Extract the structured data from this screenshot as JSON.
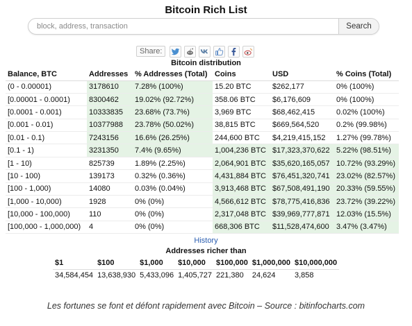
{
  "page": {
    "title": "Bitcoin Rich List"
  },
  "search": {
    "placeholder": "block, address, transaction",
    "button_label": "Search"
  },
  "share": {
    "label": "Share:",
    "icons": [
      "twitter-icon",
      "reddit-icon",
      "vk-icon",
      "like-icon",
      "facebook-icon",
      "weibo-icon"
    ]
  },
  "distribution": {
    "title": "Bitcoin distribution",
    "headers": [
      "Balance, BTC",
      "Addresses",
      "% Addresses (Total)",
      "Coins",
      "USD",
      "% Coins (Total)"
    ],
    "rows": [
      [
        "(0 - 0.00001)",
        "3178610",
        "7.28% (100%)",
        "15.20 BTC",
        "$262,177",
        "0% (100%)"
      ],
      [
        "[0.00001 - 0.0001)",
        "8300462",
        "19.02% (92.72%)",
        "358.06 BTC",
        "$6,176,609",
        "0% (100%)"
      ],
      [
        "[0.0001 - 0.001)",
        "10333835",
        "23.68% (73.7%)",
        "3,969 BTC",
        "$68,462,415",
        "0.02% (100%)"
      ],
      [
        "[0.001 - 0.01)",
        "10377988",
        "23.78% (50.02%)",
        "38,815 BTC",
        "$669,564,520",
        "0.2% (99.98%)"
      ],
      [
        "[0.01 - 0.1)",
        "7243156",
        "16.6% (26.25%)",
        "244,600 BTC",
        "$4,219,415,152",
        "1.27% (99.78%)"
      ],
      [
        "[0.1 - 1)",
        "3231350",
        "7.4% (9.65%)",
        "1,004,236 BTC",
        "$17,323,370,622",
        "5.22% (98.51%)"
      ],
      [
        "[1 - 10)",
        "825739",
        "1.89% (2.25%)",
        "2,064,901 BTC",
        "$35,620,165,057",
        "10.72% (93.29%)"
      ],
      [
        "[10 - 100)",
        "139173",
        "0.32% (0.36%)",
        "4,431,884 BTC",
        "$76,451,320,741",
        "23.02% (82.57%)"
      ],
      [
        "[100 - 1,000)",
        "14080",
        "0.03% (0.04%)",
        "3,913,468 BTC",
        "$67,508,491,190",
        "20.33% (59.55%)"
      ],
      [
        "[1,000 - 10,000)",
        "1928",
        "0% (0%)",
        "4,566,612 BTC",
        "$78,775,416,836",
        "23.72% (39.22%)"
      ],
      [
        "[10,000 - 100,000)",
        "110",
        "0% (0%)",
        "2,317,048 BTC",
        "$39,969,777,871",
        "12.03% (15.5%)"
      ],
      [
        "[100,000 - 1,000,000)",
        "4",
        "0% (0%)",
        "668,306 BTC",
        "$11,528,474,600",
        "3.47% (3.47%)"
      ]
    ],
    "shade_addr_rows": [
      0,
      1,
      2,
      3,
      4,
      5
    ],
    "shade_coins_rows": [
      5,
      6,
      7,
      8,
      9,
      10,
      11
    ]
  },
  "history_link": "History",
  "richer": {
    "title": "Addresses richer than",
    "headers": [
      "$1",
      "$100",
      "$1,000",
      "$10,000",
      "$100,000",
      "$1,000,000",
      "$10,000,000"
    ],
    "values": [
      "34,584,454",
      "13,638,930",
      "5,433,096",
      "1,405,727",
      "221,380",
      "24,624",
      "3,858"
    ]
  },
  "caption": "Les fortunes se font et défont rapidement avec Bitcoin – Source : bitinfocharts.com",
  "colors": {
    "shade_green": "#e5f3e5",
    "link_blue": "#2a5db0"
  }
}
